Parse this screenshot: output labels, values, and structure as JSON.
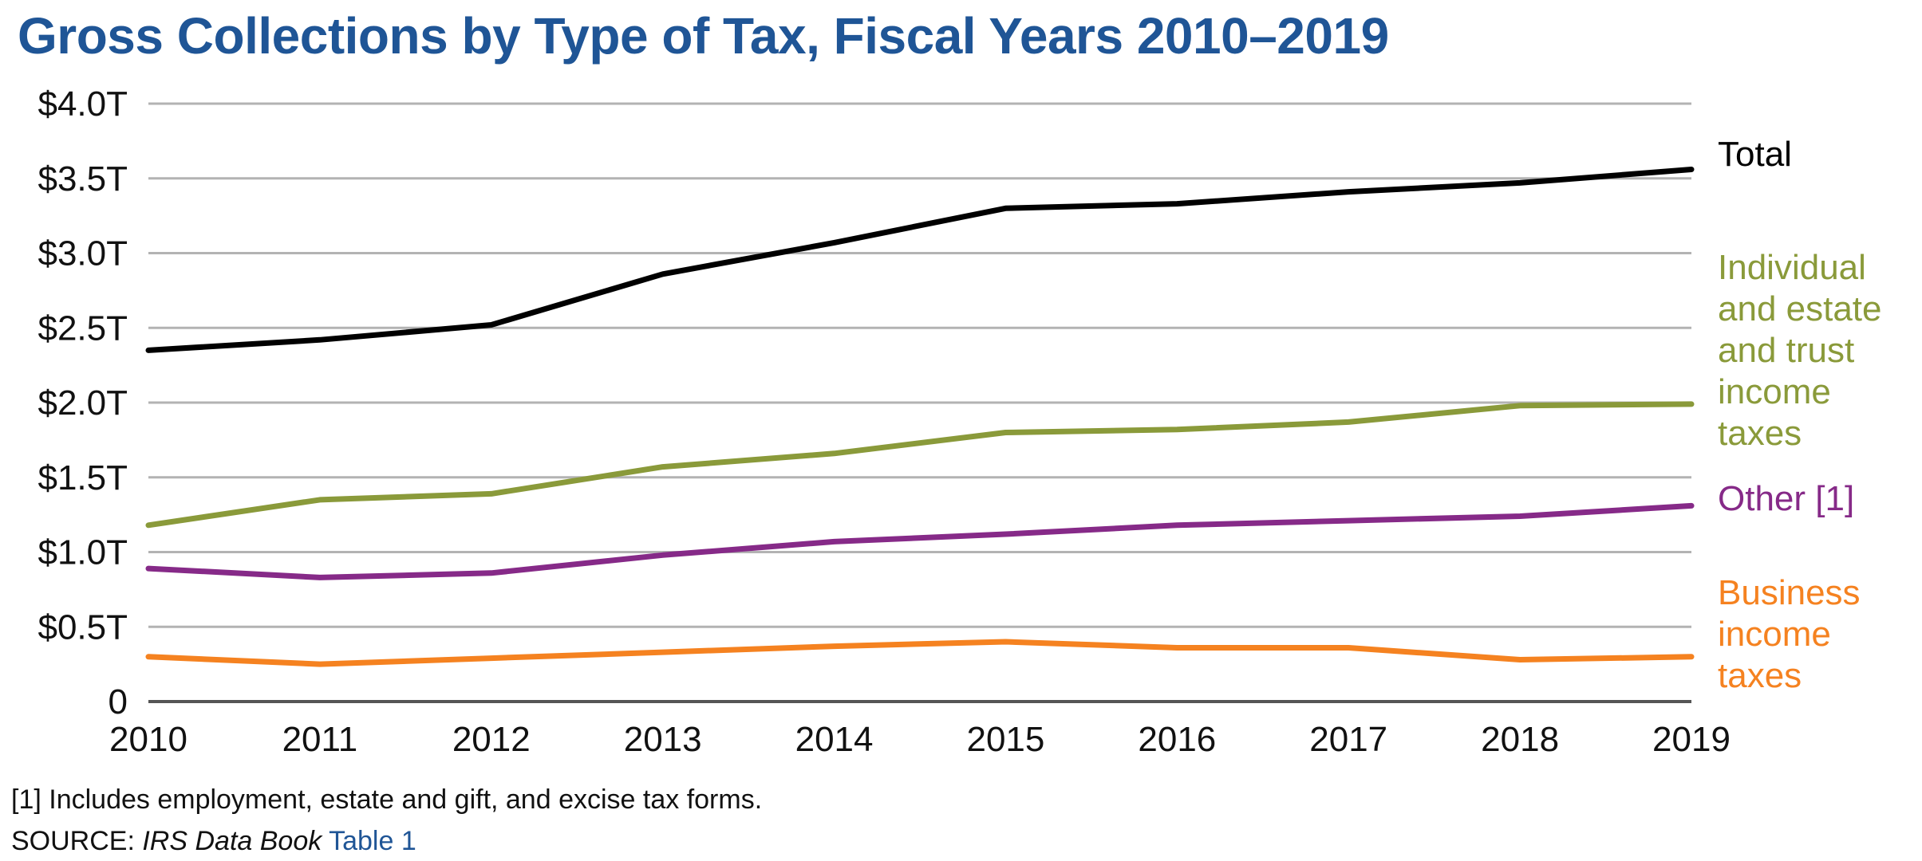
{
  "chart_data": {
    "type": "line",
    "title": "Gross Collections by Type of Tax, Fiscal Years 2010–2019",
    "x": [
      2010,
      2011,
      2012,
      2013,
      2014,
      2015,
      2016,
      2017,
      2018,
      2019
    ],
    "x_tick_labels": [
      "2010",
      "2011",
      "2012",
      "2013",
      "2014",
      "2015",
      "2016",
      "2017",
      "2018",
      "2019"
    ],
    "y_ticks": [
      0,
      0.5,
      1.0,
      1.5,
      2.0,
      2.5,
      3.0,
      3.5,
      4.0
    ],
    "y_tick_labels": [
      "0",
      "$0.5T",
      "$1.0T",
      "$1.5T",
      "$2.0T",
      "$2.5T",
      "$3.0T",
      "$3.5T",
      "$4.0T"
    ],
    "ylim": [
      0,
      4.0
    ],
    "xlabel": "",
    "ylabel": "",
    "grid": "horizontal",
    "legend": "end-of-line labels",
    "series": [
      {
        "name": "Total",
        "label_lines": [
          "Total"
        ],
        "color": "#000000",
        "values": [
          2.35,
          2.42,
          2.52,
          2.86,
          3.07,
          3.3,
          3.33,
          3.41,
          3.47,
          3.56
        ]
      },
      {
        "name": "Individual and estate and trust income taxes",
        "label_lines": [
          "Individual",
          "and estate",
          "and trust",
          "income",
          "taxes"
        ],
        "color": "#8a9a3a",
        "values": [
          1.18,
          1.35,
          1.39,
          1.57,
          1.66,
          1.8,
          1.82,
          1.87,
          1.98,
          1.99
        ]
      },
      {
        "name": "Other [1]",
        "label_lines": [
          "Other [1]"
        ],
        "color": "#862a88",
        "values": [
          0.89,
          0.83,
          0.86,
          0.98,
          1.07,
          1.12,
          1.18,
          1.21,
          1.24,
          1.31
        ]
      },
      {
        "name": "Business income taxes",
        "label_lines": [
          "Business",
          "income",
          "taxes"
        ],
        "color": "#f58220",
        "values": [
          0.3,
          0.25,
          0.29,
          0.33,
          0.37,
          0.4,
          0.36,
          0.36,
          0.28,
          0.3
        ]
      }
    ]
  },
  "footnote": "[1] Includes employment, estate and gift, and excise tax forms.",
  "source": {
    "prefix": "SOURCE: ",
    "publication": "IRS Data Book",
    "table": "Table 1"
  },
  "colors": {
    "title": "#1f5596",
    "gridline": "#b3b3b3",
    "axis": "#555555",
    "link": "#1f5596"
  }
}
